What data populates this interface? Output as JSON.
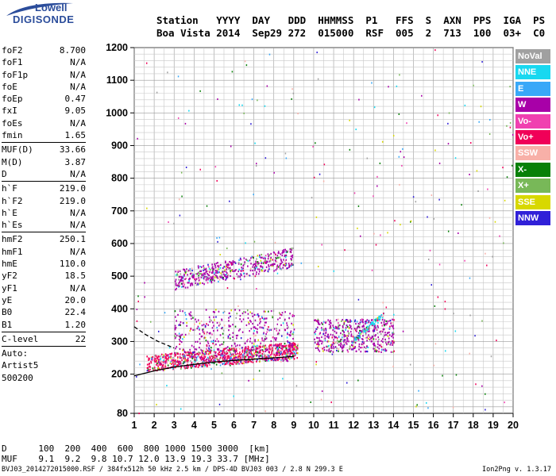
{
  "logo": {
    "line1": "Lowell",
    "line2": "DIGISONDE"
  },
  "header": {
    "labels": [
      "Station",
      "YYYY",
      "DAY",
      "DDD",
      "HHMMSS",
      "P1",
      "FFS",
      "S",
      "AXN",
      "PPS",
      "IGA",
      "PS"
    ],
    "values": [
      "Boa Vista",
      "2014",
      "Sep29",
      "272",
      "015000",
      "RSF",
      "005",
      "2",
      "713",
      "100",
      "03+",
      "C0"
    ]
  },
  "params": {
    "group1": [
      {
        "name": "foF2",
        "value": "8.700"
      },
      {
        "name": "foF1",
        "value": "N/A"
      },
      {
        "name": "foF1p",
        "value": "N/A"
      },
      {
        "name": "foE",
        "value": "N/A"
      },
      {
        "name": "foEp",
        "value": "0.47"
      },
      {
        "name": "fxI",
        "value": "9.05"
      },
      {
        "name": "foEs",
        "value": "N/A"
      },
      {
        "name": "fmin",
        "value": "1.65"
      }
    ],
    "group2": [
      {
        "name": "MUF(D)",
        "value": "33.66"
      },
      {
        "name": "M(D)",
        "value": "3.87"
      },
      {
        "name": "D",
        "value": "N/A"
      }
    ],
    "group3": [
      {
        "name": "h`F",
        "value": "219.0"
      },
      {
        "name": "h`F2",
        "value": "219.0"
      },
      {
        "name": "h`E",
        "value": "N/A"
      },
      {
        "name": "h`Es",
        "value": "N/A"
      }
    ],
    "group4": [
      {
        "name": "hmF2",
        "value": "250.1"
      },
      {
        "name": "hmF1",
        "value": "N/A"
      },
      {
        "name": "hmE",
        "value": "110.0"
      },
      {
        "name": "yF2",
        "value": "18.5"
      },
      {
        "name": "yF1",
        "value": "N/A"
      },
      {
        "name": "yE",
        "value": "20.0"
      },
      {
        "name": "B0",
        "value": "22.4"
      },
      {
        "name": "B1",
        "value": "1.20"
      }
    ],
    "clevel": {
      "name": "C-level",
      "value": "22"
    },
    "auto": [
      "Auto:",
      "Artist5",
      "500200"
    ]
  },
  "legend": [
    {
      "label": "NoVal",
      "color": "#a0a0a0"
    },
    {
      "label": "NNE",
      "color": "#18d8f0"
    },
    {
      "label": "E",
      "color": "#38a8f8"
    },
    {
      "label": "W",
      "color": "#a800a8"
    },
    {
      "label": "Vo-",
      "color": "#f040b0"
    },
    {
      "label": "Vo+",
      "color": "#f00058"
    },
    {
      "label": "SSW",
      "color": "#f8b0a8"
    },
    {
      "label": "X-",
      "color": "#088008"
    },
    {
      "label": "X+",
      "color": "#78b858"
    },
    {
      "label": "SSE",
      "color": "#d8d800"
    },
    {
      "label": "NNW",
      "color": "#3020d8"
    }
  ],
  "chart_data": {
    "type": "scatter",
    "xlim": [
      1,
      20
    ],
    "ylim": [
      80,
      1200
    ],
    "x_ticks": [
      1,
      2,
      3,
      4,
      5,
      6,
      7,
      8,
      9,
      10,
      11,
      12,
      13,
      14,
      15,
      16,
      17,
      18,
      19,
      20
    ],
    "y_ticks": [
      80,
      200,
      300,
      400,
      500,
      600,
      700,
      800,
      900,
      1000,
      1100,
      1200
    ],
    "grid": true,
    "traces": [
      {
        "name": "F-layer O-trace",
        "color": "#f00058",
        "x_range": [
          1.6,
          9.2
        ],
        "y_range": [
          210,
          310
        ]
      },
      {
        "name": "F-layer oblique",
        "color": "#a800a8",
        "x_range": [
          3.0,
          9.0
        ],
        "y_range": [
          240,
          400
        ]
      },
      {
        "name": "second hop",
        "color": "#a800a8",
        "x_range": [
          3.0,
          9.0
        ],
        "y_range": [
          460,
          600
        ]
      },
      {
        "name": "X-trace spread",
        "color": "#a800a8",
        "x_range": [
          10.0,
          14.0
        ],
        "y_range": [
          270,
          370
        ]
      },
      {
        "name": "NNE trace",
        "color": "#18d8f0",
        "x_range": [
          12.0,
          13.5
        ],
        "y_range": [
          300,
          380
        ]
      }
    ],
    "profile_curves": [
      {
        "style": "solid",
        "points": [
          [
            1.0,
            195
          ],
          [
            2.0,
            210
          ],
          [
            3.0,
            222
          ],
          [
            4.0,
            230
          ],
          [
            5.0,
            237
          ],
          [
            6.0,
            242
          ],
          [
            7.0,
            246
          ],
          [
            8.0,
            250
          ],
          [
            9.0,
            254
          ]
        ]
      },
      {
        "style": "dashed",
        "points": [
          [
            1.0,
            345
          ],
          [
            1.6,
            320
          ],
          [
            2.2,
            300
          ],
          [
            3.0,
            280
          ]
        ]
      }
    ]
  },
  "dtable": {
    "d_label": "D",
    "d_values": [
      "100",
      "200",
      "400",
      "600",
      "800",
      "1000",
      "1500",
      "3000",
      "[km]"
    ],
    "muf_label": "MUF",
    "muf_values": [
      "9.1",
      "9.2",
      "9.8",
      "10.7",
      "12.0",
      "13.9",
      "19.3",
      "33.7",
      "[MHz]"
    ]
  },
  "footer": "BVJ03_2014272015000.RSF / 384fx512h 50 kHz 2.5 km / DPS-4D BVJ03 003 / 2.8 N 299.3 E",
  "version": "Ion2Png v. 1.3.17"
}
